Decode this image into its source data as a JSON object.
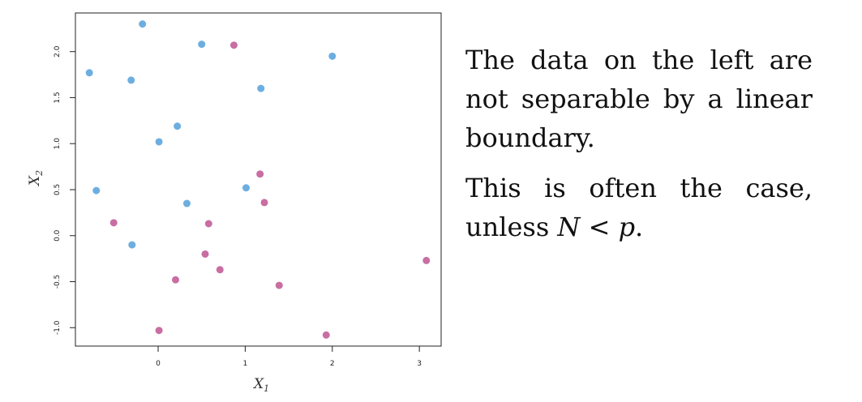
{
  "chart_data": {
    "type": "scatter",
    "xlabel": "X",
    "xlabel_sub": "1",
    "ylabel": "X",
    "ylabel_sub": "2",
    "xlim": [
      -0.95,
      3.25
    ],
    "ylim": [
      -1.2,
      2.42
    ],
    "xticks": [
      0,
      1,
      2,
      3
    ],
    "yticks": [
      -1.0,
      -0.5,
      0.0,
      0.5,
      1.0,
      1.5,
      2.0
    ],
    "ytick_labels": [
      "-1.0",
      "-0.5",
      "0.0",
      "0.5",
      "1.0",
      "1.5",
      "2.0"
    ],
    "grid": false,
    "series": [
      {
        "color": "#6daee0",
        "points": [
          [
            -0.79,
            1.77
          ],
          [
            -0.18,
            2.3
          ],
          [
            0.5,
            2.08
          ],
          [
            -0.31,
            1.69
          ],
          [
            2.0,
            1.95
          ],
          [
            1.18,
            1.6
          ],
          [
            0.22,
            1.19
          ],
          [
            0.01,
            1.02
          ],
          [
            -0.71,
            0.49
          ],
          [
            0.33,
            0.35
          ],
          [
            1.01,
            0.52
          ],
          [
            -0.3,
            -0.1
          ]
        ]
      },
      {
        "color": "#c86ea3",
        "points": [
          [
            0.87,
            2.07
          ],
          [
            1.17,
            0.67
          ],
          [
            1.22,
            0.36
          ],
          [
            -0.51,
            0.14
          ],
          [
            0.58,
            0.13
          ],
          [
            0.54,
            -0.2
          ],
          [
            0.71,
            -0.37
          ],
          [
            0.2,
            -0.48
          ],
          [
            1.39,
            -0.54
          ],
          [
            3.08,
            -0.27
          ],
          [
            0.01,
            -1.03
          ],
          [
            1.93,
            -1.08
          ]
        ]
      }
    ]
  },
  "text": {
    "para1": "The data on the left are not separable by a linear boundary.",
    "para2_prefix": "This is often the case, unless",
    "para2_math": "N < p",
    "para2_suffix": "."
  }
}
